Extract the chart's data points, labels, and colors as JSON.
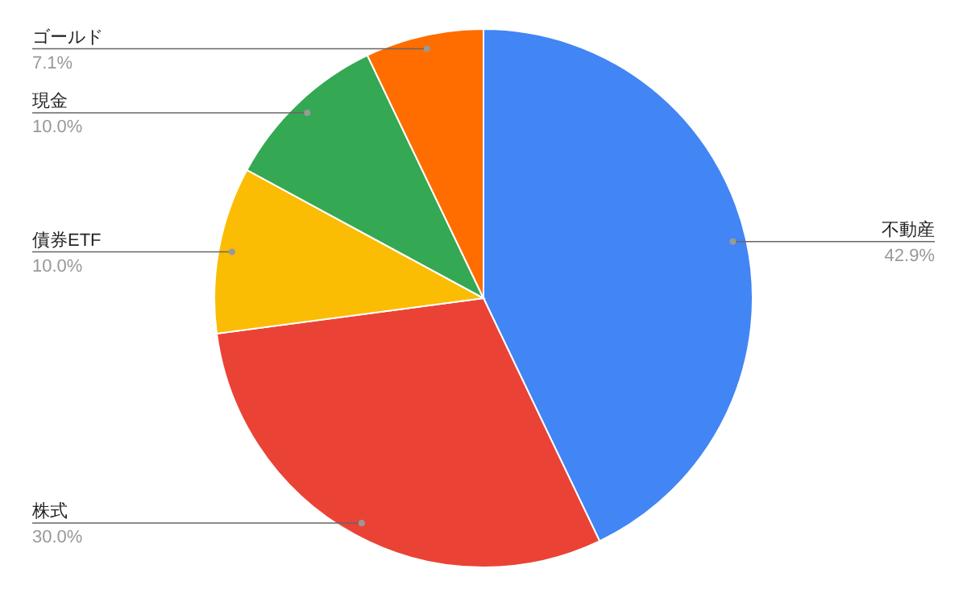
{
  "chart_data": {
    "type": "pie",
    "categories": [
      "不動産",
      "株式",
      "債券ETF",
      "現金",
      "ゴールド"
    ],
    "values": [
      42.9,
      30.0,
      10.0,
      10.0,
      7.1
    ],
    "colors": [
      "#4285f4",
      "#ea4335",
      "#fbbc04",
      "#34a853",
      "#ff6d01"
    ],
    "value_labels": [
      "42.9%",
      "30.0%",
      "10.0%",
      "10.0%",
      "7.1%"
    ]
  }
}
